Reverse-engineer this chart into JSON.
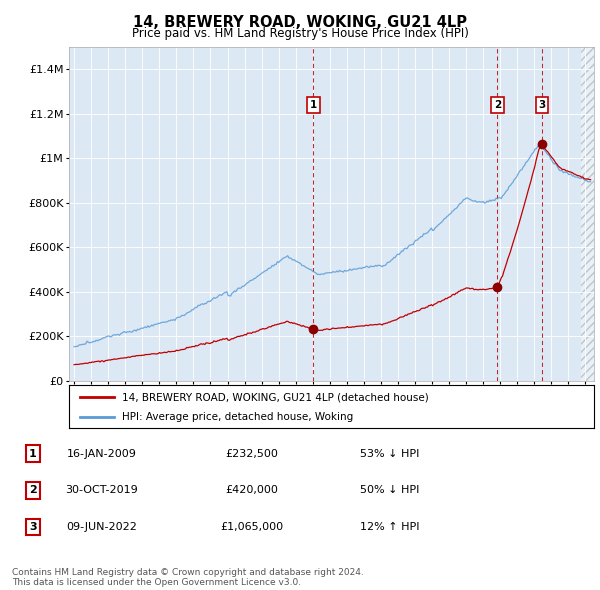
{
  "title": "14, BREWERY ROAD, WOKING, GU21 4LP",
  "subtitle": "Price paid vs. HM Land Registry's House Price Index (HPI)",
  "footer": "Contains HM Land Registry data © Crown copyright and database right 2024.\nThis data is licensed under the Open Government Licence v3.0.",
  "legend_label_red": "14, BREWERY ROAD, WOKING, GU21 4LP (detached house)",
  "legend_label_blue": "HPI: Average price, detached house, Woking",
  "transactions": [
    {
      "num": 1,
      "date": "16-JAN-2009",
      "price": 232500,
      "pct": "53% ↓ HPI",
      "year": 2009.04
    },
    {
      "num": 2,
      "date": "30-OCT-2019",
      "price": 420000,
      "pct": "50% ↓ HPI",
      "year": 2019.83
    },
    {
      "num": 3,
      "date": "09-JUN-2022",
      "price": 1065000,
      "pct": "12% ↑ HPI",
      "year": 2022.44
    }
  ],
  "ylim": [
    0,
    1500000
  ],
  "yticks": [
    0,
    200000,
    400000,
    600000,
    800000,
    1000000,
    1200000,
    1400000
  ],
  "ytick_labels": [
    "£0",
    "£200K",
    "£400K",
    "£600K",
    "£800K",
    "£1M",
    "£1.2M",
    "£1.4M"
  ],
  "xlim_start": 1994.7,
  "xlim_end": 2025.5,
  "hpi_color": "#5b9bd5",
  "price_color": "#c00000",
  "bg_color": "#dce9f5",
  "plot_bg": "#ffffff",
  "dashed_color": "#c00000",
  "marker_color": "#8b0000"
}
